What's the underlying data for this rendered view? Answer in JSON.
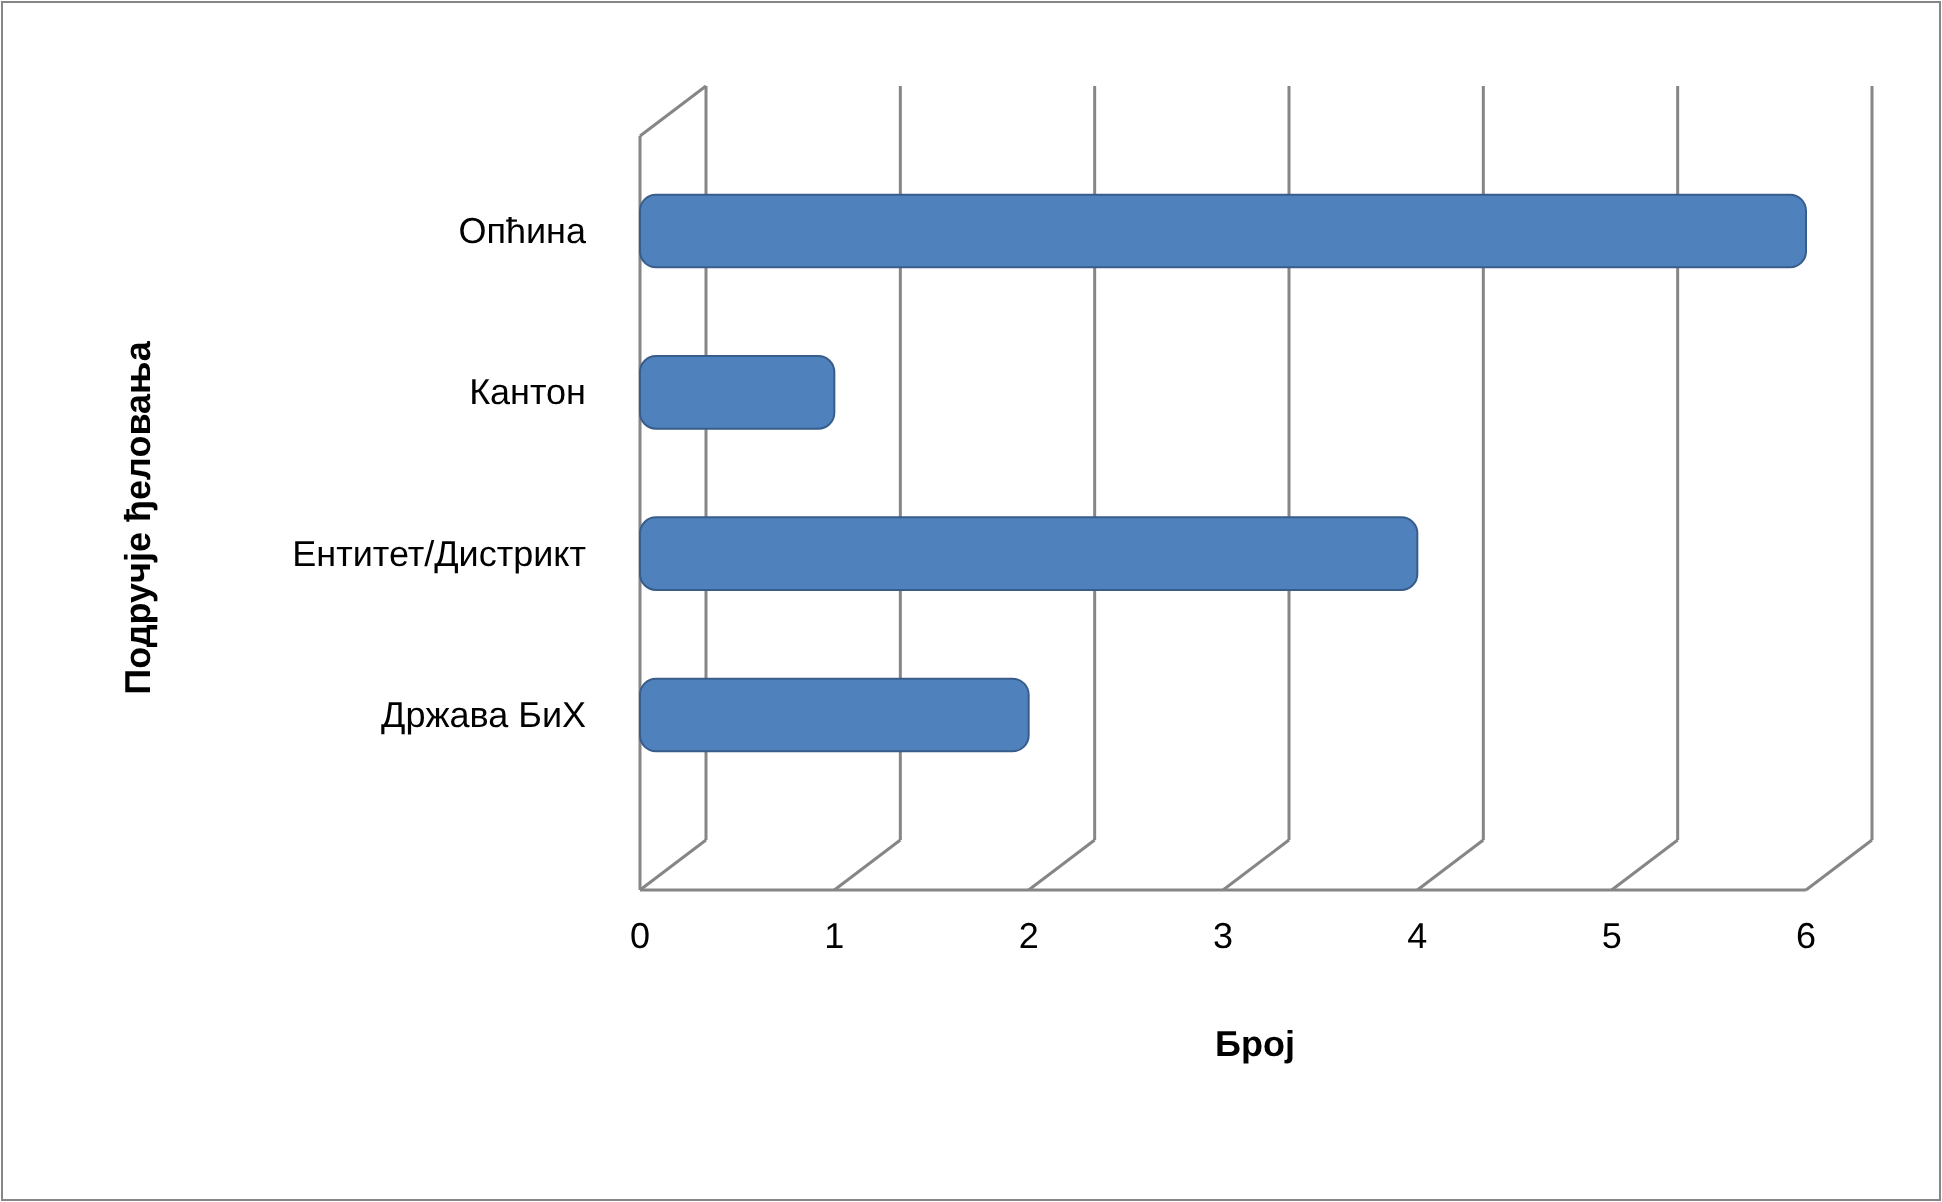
{
  "chart_data": {
    "type": "bar",
    "orientation": "horizontal",
    "xlabel": "Број",
    "ylabel": "Подручје ђеловања",
    "categories": [
      "Опћина",
      "Кантон",
      "Ентитет/Дистрикт",
      "Држава БиХ"
    ],
    "values": [
      6,
      1,
      4,
      2
    ],
    "color": "#4f81bd",
    "xlim": [
      0,
      6
    ],
    "xticks": [
      0,
      1,
      2,
      3,
      4,
      5,
      6
    ],
    "grid": "x"
  }
}
